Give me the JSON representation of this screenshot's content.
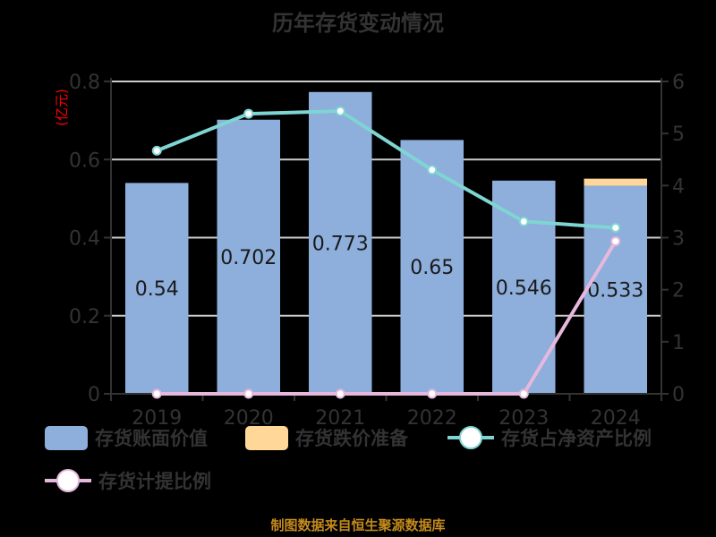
{
  "title": "历年存货变动情况",
  "footer": "制图数据来自恒生聚源数据库",
  "colors": {
    "book_value": "#8eaedb",
    "impairment": "#ffd899",
    "ratio_net_assets": "#7fd5d2",
    "provision_ratio": "#e6b8dd",
    "unit_label": "#ff0000",
    "axis_text": "#333333",
    "footer": "#c48a1c"
  },
  "left_axis": {
    "unit_label": "(亿元)",
    "ticks": [
      "0",
      "0.2",
      "0.4",
      "0.6",
      "0.8"
    ]
  },
  "right_axis": {
    "ticks": [
      "0",
      "1",
      "2",
      "3",
      "4",
      "5",
      "6"
    ]
  },
  "legend": [
    {
      "label": "存货账面价值",
      "type": "bar"
    },
    {
      "label": "存货跌价准备",
      "type": "bar"
    },
    {
      "label": "存货占净资产比例",
      "type": "line"
    },
    {
      "label": "存货计提比例",
      "type": "line"
    }
  ],
  "chart_data": {
    "type": "bar",
    "title": "历年存货变动情况",
    "xlabel": "",
    "ylabel": "(亿元)",
    "ylim": [
      0,
      0.8
    ],
    "y2lim": [
      0,
      6
    ],
    "categories": [
      "2019",
      "2020",
      "2021",
      "2022",
      "2023",
      "2024"
    ],
    "series": [
      {
        "name": "存货账面价值",
        "type": "bar",
        "stack": "inventory",
        "axis": "left",
        "values": [
          0.54,
          0.702,
          0.773,
          0.65,
          0.546,
          0.533
        ],
        "labels": [
          "0.54",
          "0.702",
          "0.773",
          "0.65",
          "0.546",
          "0.533"
        ]
      },
      {
        "name": "存货跌价准备",
        "type": "bar",
        "stack": "inventory",
        "axis": "left",
        "values": [
          0,
          0,
          0,
          0,
          0,
          0.018
        ]
      },
      {
        "name": "存货占净资产比例",
        "type": "line",
        "axis": "right",
        "values": [
          4.67,
          5.38,
          5.43,
          4.3,
          3.31,
          3.19
        ]
      },
      {
        "name": "存货计提比例",
        "type": "line",
        "axis": "right",
        "values": [
          0,
          0,
          0,
          0,
          0,
          2.93
        ]
      }
    ],
    "grid": true,
    "legend_position": "bottom"
  }
}
